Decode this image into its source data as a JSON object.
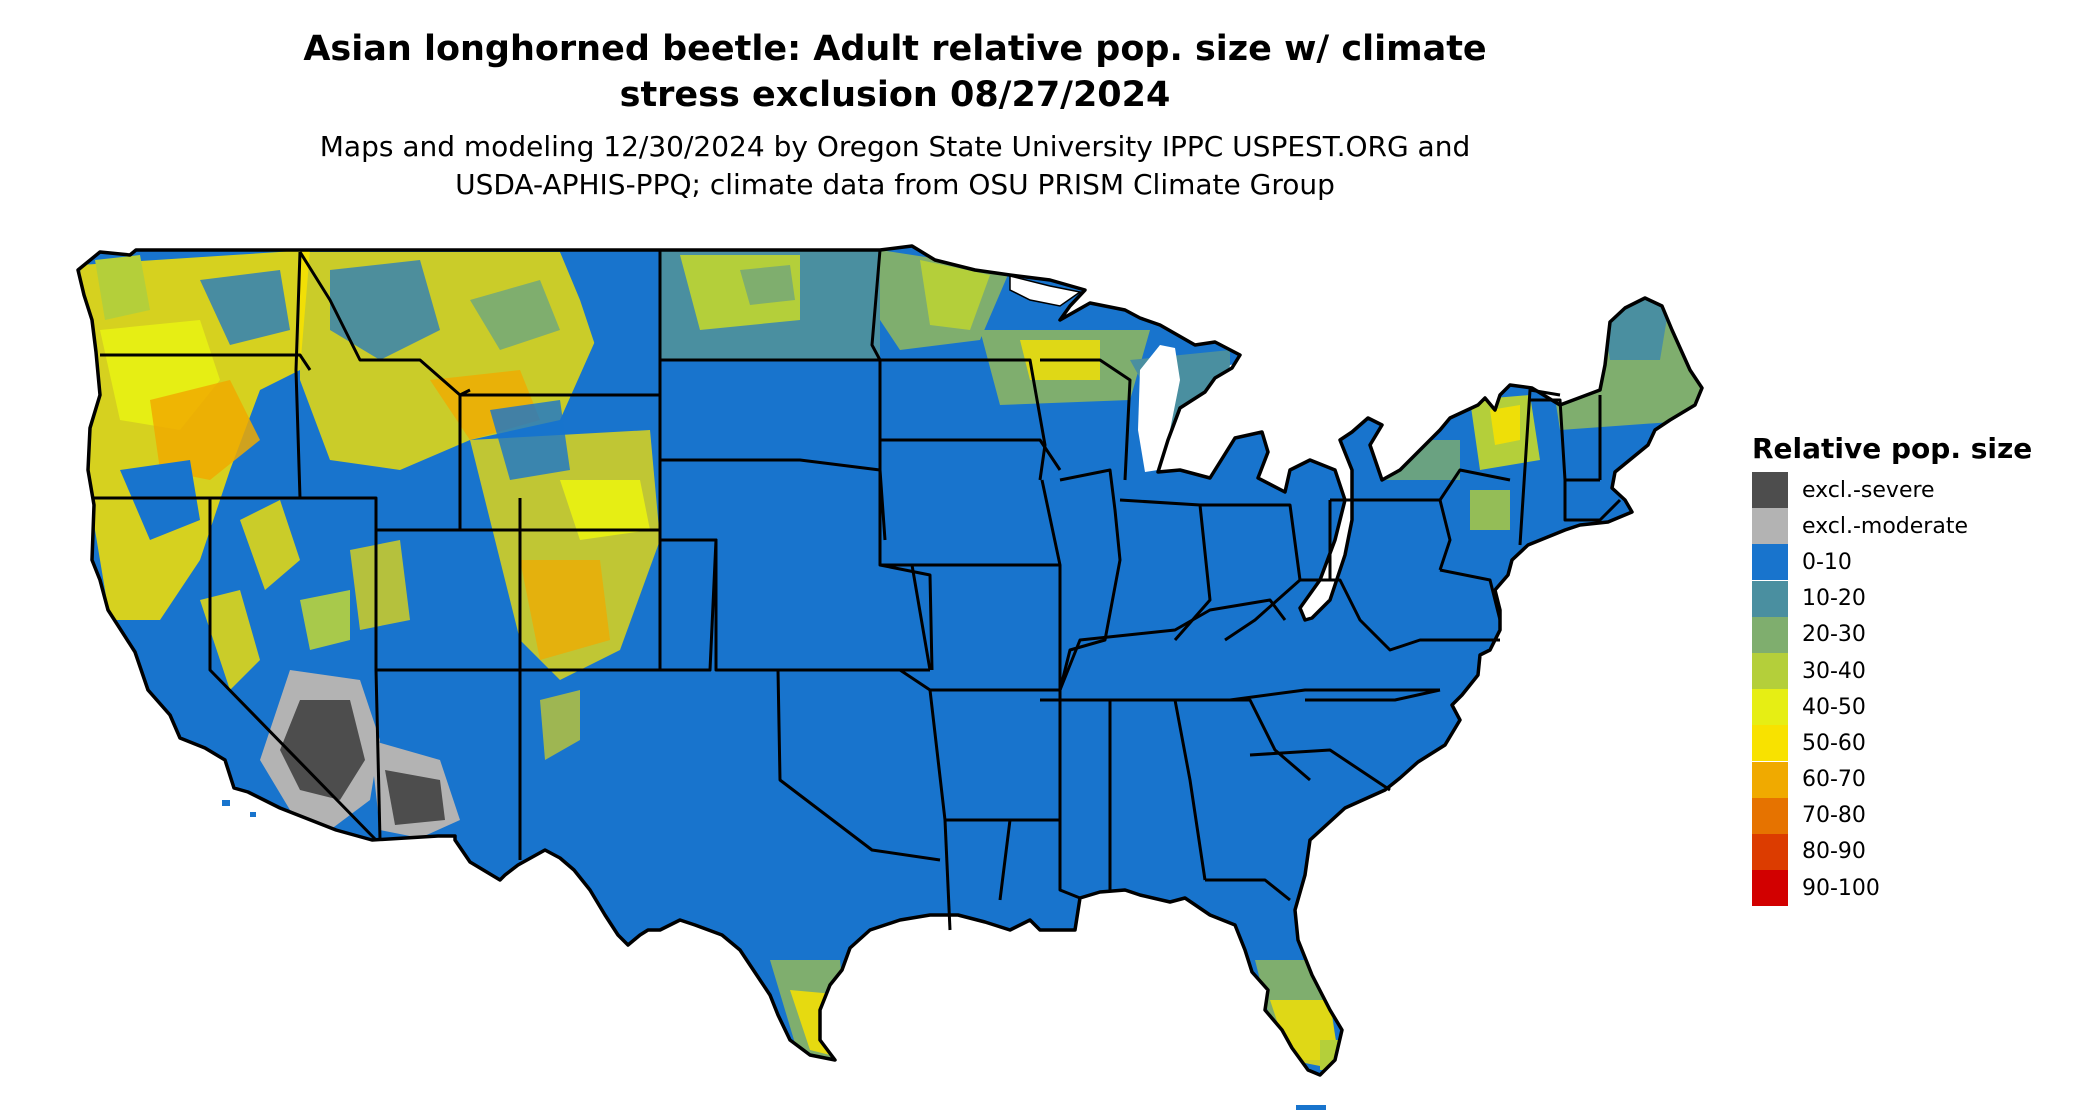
{
  "title_line1": "Asian longhorned beetle: Adult relative pop. size w/ climate",
  "title_line2": "stress exclusion 08/27/2024",
  "subtitle_line1": "Maps and modeling 12/30/2024 by Oregon State University IPPC USPEST.ORG and",
  "subtitle_line2": "USDA-APHIS-PPQ; climate data from OSU PRISM Climate Group",
  "legend": {
    "title": "Relative pop. size",
    "items": [
      {
        "label": "excl.-severe",
        "color": "#4d4d4d"
      },
      {
        "label": "excl.-moderate",
        "color": "#b3b3b3"
      },
      {
        "label": "0-10",
        "color": "#1874cd"
      },
      {
        "label": "10-20",
        "color": "#4a8fa0"
      },
      {
        "label": "20-30",
        "color": "#7fae6e"
      },
      {
        "label": "30-40",
        "color": "#b4cf3a"
      },
      {
        "label": "40-50",
        "color": "#e6ee14"
      },
      {
        "label": "50-60",
        "color": "#f8e200"
      },
      {
        "label": "60-70",
        "color": "#f0aa00"
      },
      {
        "label": "70-80",
        "color": "#e67300"
      },
      {
        "label": "80-90",
        "color": "#dc3c00"
      },
      {
        "label": "90-100",
        "color": "#d20000"
      }
    ]
  }
}
